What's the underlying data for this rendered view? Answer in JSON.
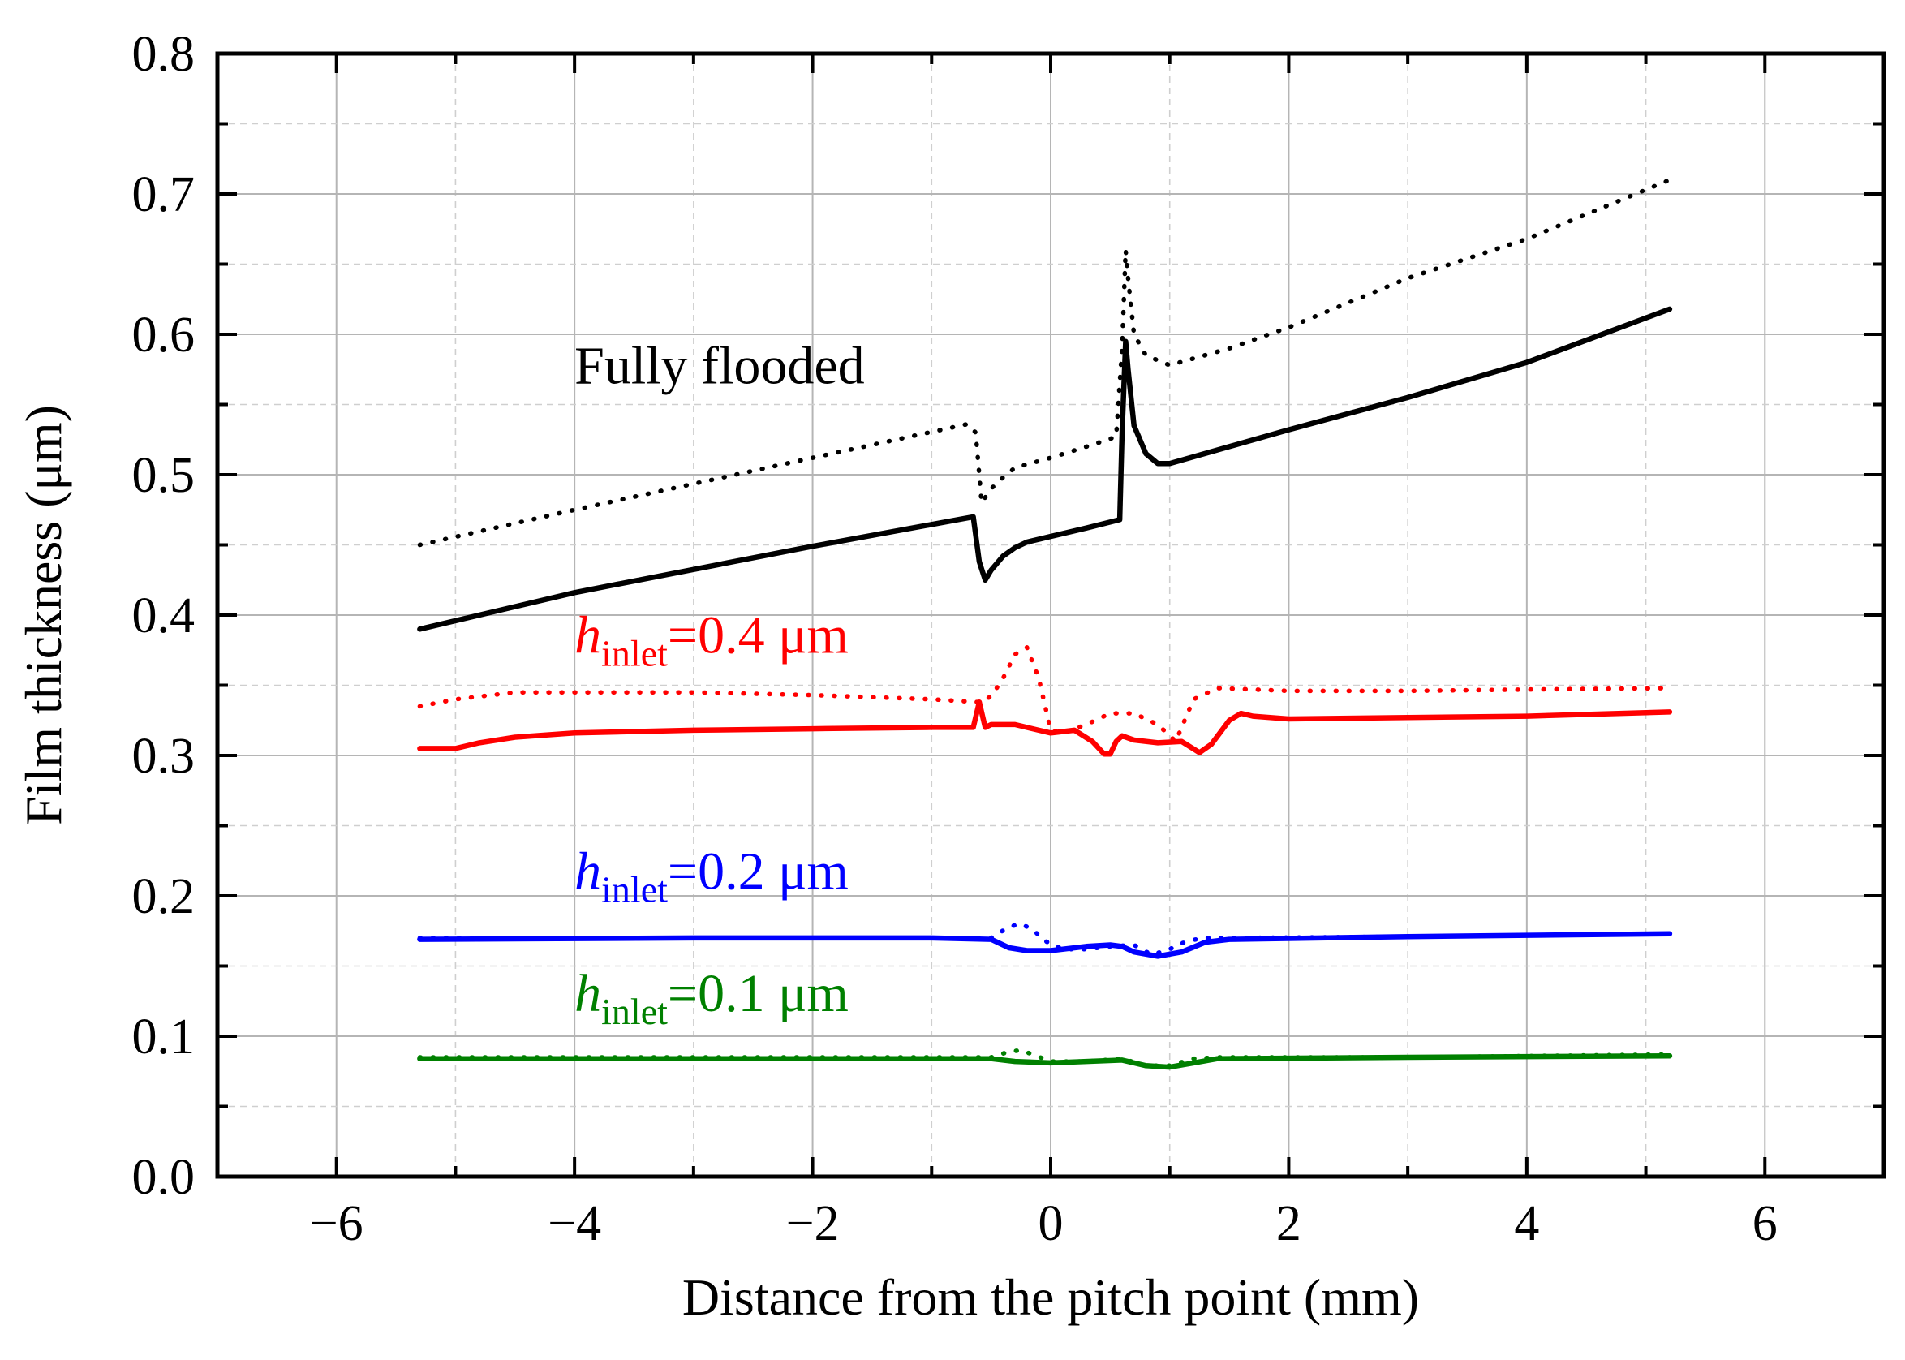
{
  "chart_data": {
    "type": "line",
    "title": "",
    "xlabel": "Distance from the pitch point (mm)",
    "ylabel": "Film thickness (μm)",
    "xlim": [
      -7,
      7
    ],
    "ylim": [
      0.0,
      0.8
    ],
    "xticks": [
      -6,
      -4,
      -2,
      0,
      2,
      4,
      6
    ],
    "xtick_labels": [
      "−6",
      "−4",
      "−2",
      "0",
      "2",
      "4",
      "6"
    ],
    "yticks": [
      0.0,
      0.1,
      0.2,
      0.3,
      0.4,
      0.5,
      0.6,
      0.7,
      0.8
    ],
    "ytick_labels": [
      "0.0",
      "0.1",
      "0.2",
      "0.3",
      "0.4",
      "0.5",
      "0.6",
      "0.7",
      "0.8"
    ],
    "grid": true,
    "annotations": [
      {
        "id": "ff",
        "parts": [
          {
            "text": "Fully flooded"
          }
        ],
        "color": "#000000",
        "x": -4.0,
        "y": 0.565
      },
      {
        "id": "h04",
        "parts": [
          {
            "text": "h",
            "italic": true
          },
          {
            "text": "inlet",
            "sub": true
          },
          {
            "text": "=0.4 μm"
          }
        ],
        "color": "#ff0000",
        "x": -4.0,
        "y": 0.373
      },
      {
        "id": "h02",
        "parts": [
          {
            "text": "h",
            "italic": true
          },
          {
            "text": "inlet",
            "sub": true
          },
          {
            "text": "=0.2 μm"
          }
        ],
        "color": "#0000ff",
        "x": -4.0,
        "y": 0.205
      },
      {
        "id": "h01",
        "parts": [
          {
            "text": "h",
            "italic": true
          },
          {
            "text": "inlet",
            "sub": true
          },
          {
            "text": "=0.1 μm"
          }
        ],
        "color": "#008000",
        "x": -4.0,
        "y": 0.118
      }
    ],
    "series": [
      {
        "name": "Fully flooded (dotted)",
        "color": "#000000",
        "style": "dotted",
        "x": [
          -5.3,
          -4.0,
          -2.0,
          -0.7,
          -0.63,
          -0.58,
          -0.5,
          -0.4,
          -0.3,
          0.0,
          0.3,
          0.55,
          0.6,
          0.63,
          0.65,
          0.7,
          0.8,
          1.0,
          1.5,
          2.0,
          3.0,
          4.0,
          5.2
        ],
        "y": [
          0.45,
          0.475,
          0.512,
          0.536,
          0.53,
          0.48,
          0.49,
          0.498,
          0.505,
          0.512,
          0.52,
          0.527,
          0.59,
          0.66,
          0.64,
          0.6,
          0.585,
          0.578,
          0.59,
          0.605,
          0.64,
          0.668,
          0.71
        ]
      },
      {
        "name": "Fully flooded (solid)",
        "color": "#000000",
        "style": "solid",
        "x": [
          -5.3,
          -4.0,
          -2.0,
          -0.65,
          -0.6,
          -0.55,
          -0.5,
          -0.4,
          -0.3,
          -0.2,
          0.0,
          0.3,
          0.58,
          0.6,
          0.63,
          0.65,
          0.7,
          0.8,
          0.9,
          1.0,
          1.5,
          2.0,
          3.0,
          4.0,
          5.2
        ],
        "y": [
          0.39,
          0.416,
          0.449,
          0.47,
          0.438,
          0.425,
          0.432,
          0.442,
          0.448,
          0.452,
          0.456,
          0.462,
          0.468,
          0.53,
          0.595,
          0.575,
          0.535,
          0.515,
          0.508,
          0.508,
          0.52,
          0.532,
          0.555,
          0.58,
          0.618
        ]
      },
      {
        "name": "h_inlet=0.4 μm (dotted)",
        "color": "#ff0000",
        "style": "dotted",
        "x": [
          -5.3,
          -5.0,
          -4.5,
          -3.0,
          -2.0,
          -1.0,
          -0.6,
          -0.5,
          -0.4,
          -0.3,
          -0.2,
          -0.1,
          0.0,
          0.1,
          0.3,
          0.5,
          0.7,
          0.9,
          1.05,
          1.2,
          1.4,
          2.0,
          3.0,
          4.0,
          5.2
        ],
        "y": [
          0.335,
          0.34,
          0.345,
          0.345,
          0.343,
          0.34,
          0.338,
          0.342,
          0.355,
          0.372,
          0.377,
          0.355,
          0.318,
          0.316,
          0.322,
          0.33,
          0.33,
          0.322,
          0.31,
          0.34,
          0.348,
          0.346,
          0.346,
          0.347,
          0.348
        ]
      },
      {
        "name": "h_inlet=0.4 μm (solid)",
        "color": "#ff0000",
        "style": "solid",
        "x": [
          -5.3,
          -5.0,
          -4.8,
          -4.5,
          -4.0,
          -3.0,
          -2.0,
          -1.0,
          -0.65,
          -0.6,
          -0.55,
          -0.5,
          -0.3,
          -0.1,
          0.0,
          0.2,
          0.35,
          0.45,
          0.5,
          0.55,
          0.6,
          0.7,
          0.9,
          1.1,
          1.25,
          1.35,
          1.5,
          1.6,
          1.7,
          2.0,
          3.0,
          4.0,
          5.2
        ],
        "y": [
          0.305,
          0.305,
          0.309,
          0.313,
          0.316,
          0.318,
          0.319,
          0.32,
          0.32,
          0.338,
          0.32,
          0.322,
          0.322,
          0.318,
          0.316,
          0.318,
          0.31,
          0.301,
          0.301,
          0.31,
          0.314,
          0.311,
          0.309,
          0.31,
          0.302,
          0.308,
          0.325,
          0.33,
          0.328,
          0.326,
          0.327,
          0.328,
          0.331
        ]
      },
      {
        "name": "h_inlet=0.2 μm (dotted)",
        "color": "#0000ff",
        "style": "dotted",
        "x": [
          -5.3,
          -3.0,
          -1.0,
          -0.5,
          -0.35,
          -0.25,
          -0.15,
          -0.05,
          0.1,
          0.3,
          0.5,
          0.7,
          0.85,
          1.0,
          1.15,
          1.3,
          1.5,
          3.0,
          5.2
        ],
        "y": [
          0.17,
          0.17,
          0.17,
          0.17,
          0.178,
          0.18,
          0.176,
          0.168,
          0.162,
          0.162,
          0.164,
          0.165,
          0.158,
          0.162,
          0.168,
          0.17,
          0.17,
          0.171,
          0.173
        ]
      },
      {
        "name": "h_inlet=0.2 μm (solid)",
        "color": "#0000ff",
        "style": "solid",
        "x": [
          -5.3,
          -3.0,
          -1.0,
          -0.5,
          -0.35,
          -0.2,
          0.0,
          0.3,
          0.5,
          0.6,
          0.7,
          0.9,
          1.1,
          1.3,
          1.5,
          3.0,
          5.2
        ],
        "y": [
          0.169,
          0.17,
          0.17,
          0.169,
          0.163,
          0.161,
          0.161,
          0.164,
          0.165,
          0.164,
          0.16,
          0.157,
          0.16,
          0.167,
          0.169,
          0.171,
          0.173
        ]
      },
      {
        "name": "h_inlet=0.1 μm (dotted)",
        "color": "#008000",
        "style": "dotted",
        "x": [
          -5.3,
          -2.0,
          -0.5,
          -0.35,
          -0.25,
          -0.15,
          0.0,
          0.3,
          0.6,
          0.8,
          1.0,
          1.2,
          1.4,
          3.0,
          5.2
        ],
        "y": [
          0.085,
          0.085,
          0.085,
          0.089,
          0.09,
          0.087,
          0.082,
          0.082,
          0.084,
          0.079,
          0.079,
          0.084,
          0.085,
          0.085,
          0.087
        ]
      },
      {
        "name": "h_inlet=0.1 μm (solid)",
        "color": "#008000",
        "style": "solid",
        "x": [
          -5.3,
          -2.0,
          -0.5,
          -0.3,
          0.0,
          0.3,
          0.6,
          0.8,
          1.0,
          1.2,
          1.4,
          3.0,
          5.2
        ],
        "y": [
          0.084,
          0.084,
          0.084,
          0.082,
          0.081,
          0.082,
          0.083,
          0.079,
          0.078,
          0.081,
          0.084,
          0.085,
          0.086
        ]
      }
    ]
  }
}
